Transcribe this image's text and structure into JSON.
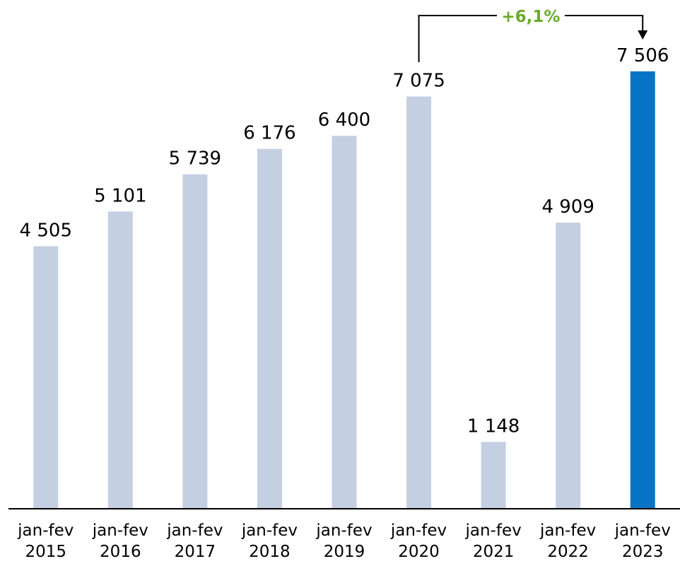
{
  "chart_data": {
    "type": "bar",
    "categories": [
      "jan-fev 2015",
      "jan-fev 2016",
      "jan-fev 2017",
      "jan-fev 2018",
      "jan-fev 2019",
      "jan-fev 2020",
      "jan-fev 2021",
      "jan-fev 2022",
      "jan-fev 2023"
    ],
    "values": [
      4505,
      5101,
      5739,
      6176,
      6400,
      7075,
      1148,
      4909,
      7506
    ],
    "value_labels": [
      "4 505",
      "5 101",
      "5 739",
      "6 176",
      "6 400",
      "7 075",
      "1 148",
      "4 909",
      "7 506"
    ],
    "colors": [
      "#c5cfe2",
      "#c5cfe2",
      "#c5cfe2",
      "#c5cfe2",
      "#c5cfe2",
      "#c5cfe2",
      "#c5cfe2",
      "#c5cfe2",
      "#0a74c4"
    ],
    "annotation": {
      "text": "+6,1%",
      "color": "#6aaa2a"
    }
  }
}
